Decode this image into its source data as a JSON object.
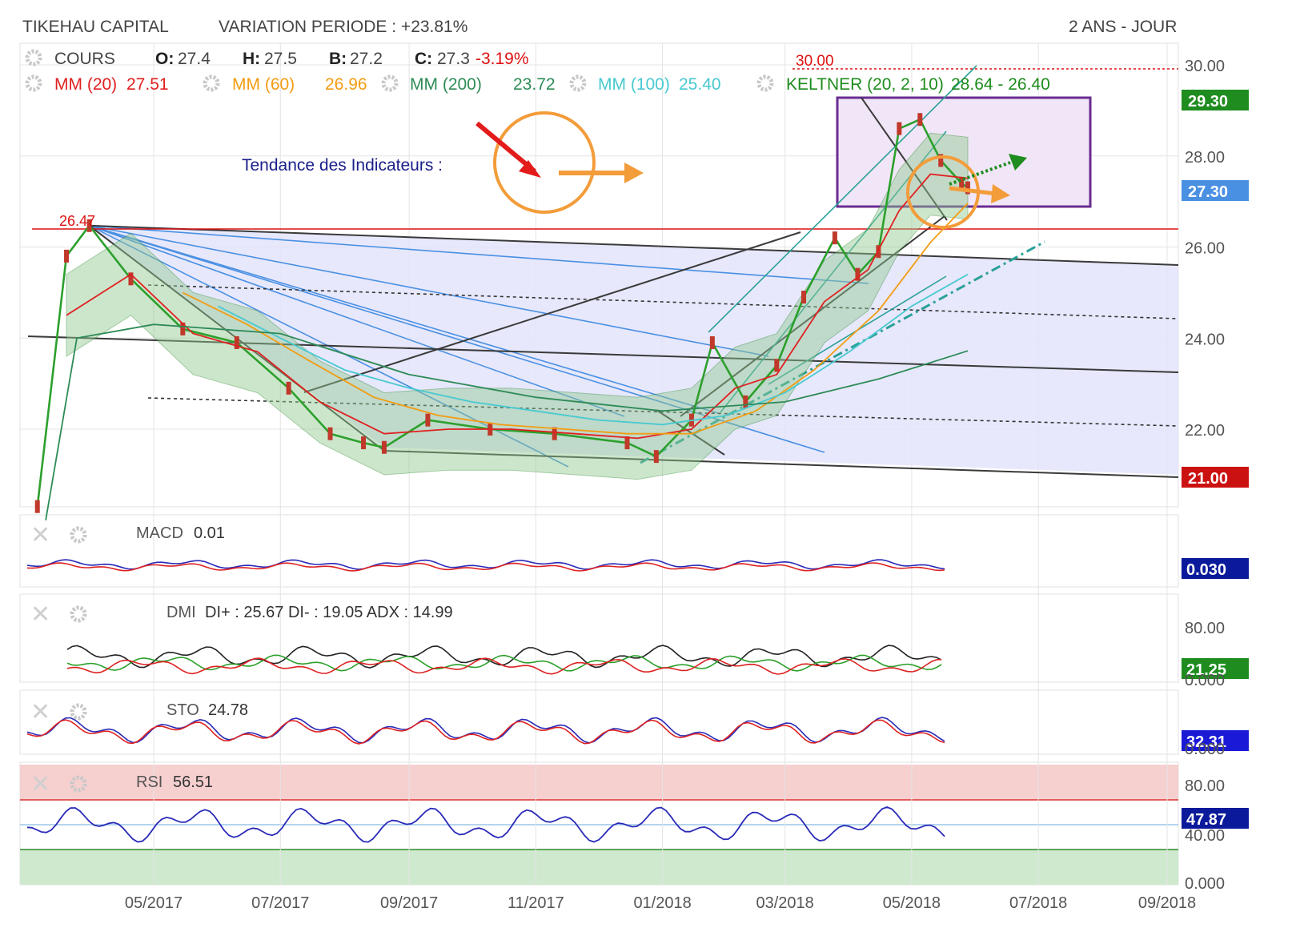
{
  "header": {
    "company": "TIKEHAU CAPITAL",
    "variation": "VARIATION PERIODE : +23.81%",
    "period": "2 ANS - JOUR"
  },
  "legend_cours": {
    "label": "COURS",
    "o_key": "O:",
    "o_val": "27.4",
    "h_key": "H:",
    "h_val": "27.5",
    "b_key": "B:",
    "b_val": "27.2",
    "c_key": "C:",
    "c_val": "27.3",
    "change": "-3.19%"
  },
  "legend_ma": [
    {
      "label": "MM (20)",
      "value": "27.51",
      "color": "#e02020"
    },
    {
      "label": "MM (60)",
      "value": "26.96",
      "color": "#f39c12"
    },
    {
      "label": "MM (200)",
      "value": "23.72",
      "color": "#2e8b57"
    },
    {
      "label": "MM (100)",
      "value": "25.40",
      "color": "#48c9d0"
    },
    {
      "label": "KELTNER (20, 2, 10)",
      "value": "28.64 - 26.40",
      "color": "#1e8c1e"
    }
  ],
  "annotations": {
    "trend_text": "Tendance des Indicateurs :",
    "peak_label": "26.47",
    "resistance_label": "30.00"
  },
  "price_badges": [
    {
      "value": "29.30",
      "color": "#1e8c1e"
    },
    {
      "value": "27.30",
      "color": "#4a90e2"
    },
    {
      "value": "21.00",
      "color": "#cc1111"
    }
  ],
  "panels": {
    "macd": {
      "label": "MACD",
      "value": "0.01",
      "badge": "0.030"
    },
    "dmi": {
      "label": "DMI",
      "value": "DI+ : 25.67 DI- : 19.05 ADX : 14.99",
      "badge": "21.25",
      "ticks": [
        "80.00",
        "0.000"
      ]
    },
    "sto": {
      "label": "STO",
      "value": "24.78",
      "badge": "32.31",
      "ticks": [
        "0.000"
      ]
    },
    "rsi": {
      "label": "RSI",
      "value": "56.51",
      "badge": "47.87",
      "ticks": [
        "80.00",
        "40.00",
        "0.000"
      ]
    }
  },
  "colors": {
    "up": "#2ca02c",
    "down": "#c0392b",
    "mm20": "#e02020",
    "mm60": "#f39c12",
    "mm200": "#2e8b57",
    "mm100": "#48c9d0",
    "channel_fill": "#e3e4fb",
    "box": "#6a2c91",
    "rsi": "#2a2ab8"
  },
  "chart_data": {
    "type": "line",
    "title": "TIKEHAU CAPITAL",
    "x_ticks": [
      "05/2017",
      "07/2017",
      "09/2017",
      "11/2017",
      "01/2018",
      "03/2018",
      "05/2018",
      "07/2018",
      "09/2018"
    ],
    "y_ticks": [
      30.0,
      28.0,
      26.0,
      24.0,
      22.0
    ],
    "ylim": [
      20.0,
      30.5
    ],
    "grid": true,
    "series": [
      {
        "name": "COURS",
        "points": [
          [
            "2017-03-06",
            20.3
          ],
          [
            "2017-03-20",
            25.8
          ],
          [
            "2017-03-31",
            26.47
          ],
          [
            "2017-04-20",
            25.3
          ],
          [
            "2017-05-15",
            24.2
          ],
          [
            "2017-06-10",
            23.9
          ],
          [
            "2017-07-05",
            22.9
          ],
          [
            "2017-07-25",
            21.9
          ],
          [
            "2017-08-10",
            21.7
          ],
          [
            "2017-08-20",
            21.6
          ],
          [
            "2017-09-10",
            22.2
          ],
          [
            "2017-10-10",
            22.0
          ],
          [
            "2017-11-10",
            21.9
          ],
          [
            "2017-12-15",
            21.7
          ],
          [
            "2017-12-29",
            21.4
          ],
          [
            "2018-01-15",
            22.2
          ],
          [
            "2018-01-25",
            23.9
          ],
          [
            "2018-02-10",
            22.6
          ],
          [
            "2018-02-25",
            23.4
          ],
          [
            "2018-03-10",
            24.9
          ],
          [
            "2018-03-25",
            26.2
          ],
          [
            "2018-04-05",
            25.4
          ],
          [
            "2018-04-15",
            25.9
          ],
          [
            "2018-04-25",
            28.6
          ],
          [
            "2018-05-05",
            28.8
          ],
          [
            "2018-05-15",
            27.9
          ],
          [
            "2018-05-25",
            27.4
          ],
          [
            "2018-05-28",
            27.3
          ]
        ]
      },
      {
        "name": "MM (20)",
        "points": [
          [
            "2017-03-20",
            24.5
          ],
          [
            "2017-04-20",
            25.4
          ],
          [
            "2017-05-20",
            24.1
          ],
          [
            "2017-06-20",
            23.7
          ],
          [
            "2017-07-20",
            22.6
          ],
          [
            "2017-08-20",
            21.9
          ],
          [
            "2017-09-20",
            22.0
          ],
          [
            "2017-10-20",
            22.0
          ],
          [
            "2017-11-20",
            21.9
          ],
          [
            "2017-12-20",
            21.8
          ],
          [
            "2018-01-15",
            22.0
          ],
          [
            "2018-02-05",
            22.9
          ],
          [
            "2018-02-25",
            23.2
          ],
          [
            "2018-03-20",
            24.8
          ],
          [
            "2018-04-10",
            25.5
          ],
          [
            "2018-04-25",
            26.8
          ],
          [
            "2018-05-10",
            27.6
          ],
          [
            "2018-05-28",
            27.51
          ]
        ]
      },
      {
        "name": "MM (60)",
        "points": [
          [
            "2017-05-15",
            25.0
          ],
          [
            "2017-06-15",
            24.3
          ],
          [
            "2017-07-15",
            23.5
          ],
          [
            "2017-08-15",
            22.7
          ],
          [
            "2017-09-15",
            22.3
          ],
          [
            "2017-10-15",
            22.1
          ],
          [
            "2017-11-15",
            22.0
          ],
          [
            "2017-12-15",
            21.9
          ],
          [
            "2018-01-15",
            21.9
          ],
          [
            "2018-02-15",
            22.4
          ],
          [
            "2018-03-15",
            23.3
          ],
          [
            "2018-04-15",
            24.6
          ],
          [
            "2018-05-10",
            26.1
          ],
          [
            "2018-05-28",
            26.96
          ]
        ]
      },
      {
        "name": "MM (100)",
        "points": [
          [
            "2017-06-01",
            24.7
          ],
          [
            "2017-07-01",
            24.0
          ],
          [
            "2017-08-01",
            23.3
          ],
          [
            "2017-09-01",
            22.9
          ],
          [
            "2017-10-01",
            22.6
          ],
          [
            "2017-11-01",
            22.4
          ],
          [
            "2017-12-01",
            22.2
          ],
          [
            "2018-01-01",
            22.1
          ],
          [
            "2018-02-01",
            22.3
          ],
          [
            "2018-03-01",
            22.8
          ],
          [
            "2018-04-01",
            23.7
          ],
          [
            "2018-05-01",
            24.7
          ],
          [
            "2018-05-28",
            25.4
          ]
        ]
      },
      {
        "name": "MM (200)",
        "points": [
          [
            "2017-03-10",
            20.0
          ],
          [
            "2017-03-25",
            24.0
          ],
          [
            "2017-05-01",
            24.3
          ],
          [
            "2017-07-01",
            24.1
          ],
          [
            "2017-09-01",
            23.2
          ],
          [
            "2017-11-01",
            22.7
          ],
          [
            "2018-01-01",
            22.4
          ],
          [
            "2018-03-01",
            22.6
          ],
          [
            "2018-04-15",
            23.1
          ],
          [
            "2018-05-28",
            23.72
          ]
        ]
      }
    ]
  }
}
